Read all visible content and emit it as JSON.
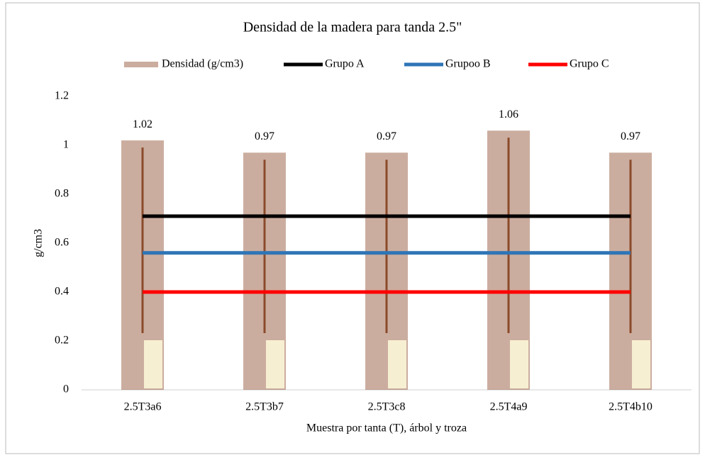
{
  "chart_data": {
    "type": "bar",
    "title": "Densidad de la madera para tanda 2.5\"",
    "x_label": "Muestra por tanta (T), árbol y troza",
    "y_label": "g/cm3",
    "categories": [
      "2.5T3a6",
      "2.5T3b7",
      "2.5T3c8",
      "2.5T4a9",
      "2.5T4b10"
    ],
    "series": [
      {
        "name": "Densidad (g/cm3)",
        "type": "bar",
        "color": "#8b4a2b",
        "values": [
          1.02,
          0.97,
          0.97,
          1.06,
          0.97
        ]
      },
      {
        "name": "Grupo A",
        "type": "line",
        "color": "#000000",
        "values": [
          0.71,
          0.71,
          0.71,
          0.71,
          0.71
        ]
      },
      {
        "name": "Grupoo B",
        "type": "line",
        "color": "#2e75b6",
        "values": [
          0.56,
          0.56,
          0.56,
          0.56,
          0.56
        ]
      },
      {
        "name": "Grupo C",
        "type": "line",
        "color": "#ff0000",
        "values": [
          0.4,
          0.4,
          0.4,
          0.4,
          0.4
        ]
      }
    ],
    "ylim": [
      0,
      1.2
    ],
    "yticks": [
      0,
      0.2,
      0.4,
      0.6,
      0.8,
      1,
      1.2
    ],
    "legend": "top",
    "data_labels": true
  }
}
